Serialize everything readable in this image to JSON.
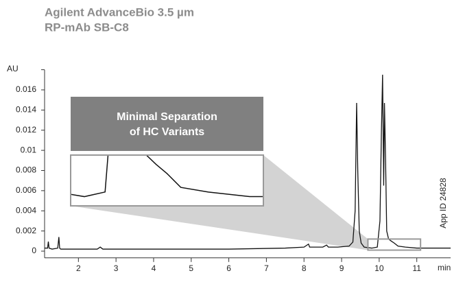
{
  "chart_data": {
    "type": "line",
    "title": [
      "Agilent AdvanceBio 3.5 µm",
      "RP-mAb SB-C8"
    ],
    "y_label": "AU",
    "x_label": "min",
    "annotation": "App ID 24828",
    "inset_title": [
      "Minimal Separation",
      "of HC Variants"
    ],
    "x": [
      1.1,
      1.18,
      1.2,
      1.22,
      1.3,
      1.45,
      1.48,
      1.5,
      1.53,
      1.7,
      2.5,
      2.58,
      2.65,
      4,
      6,
      7.5,
      8.0,
      8.12,
      8.15,
      8.2,
      8.5,
      8.6,
      8.65,
      8.9,
      9.2,
      9.3,
      9.36,
      9.4,
      9.43,
      9.47,
      9.52,
      9.6,
      9.8,
      9.95,
      10.02,
      10.06,
      10.09,
      10.12,
      10.14,
      10.17,
      10.2,
      10.25,
      10.32,
      10.4,
      10.5,
      10.7,
      11,
      11.5,
      11.9
    ],
    "values": [
      0.0003,
      0.0003,
      0.00095,
      0.0003,
      0.0002,
      0.0003,
      0.0014,
      0.0003,
      0.0002,
      0.0002,
      0.0002,
      0.0004,
      0.0002,
      0.0002,
      0.0002,
      0.0003,
      0.0004,
      0.0007,
      0.0004,
      0.0004,
      0.0004,
      0.0006,
      0.0004,
      0.0004,
      0.0005,
      0.0009,
      0.004,
      0.0147,
      0.008,
      0.002,
      0.0008,
      0.0004,
      0.0003,
      0.0004,
      0.003,
      0.012,
      0.0175,
      0.0065,
      0.0147,
      0.009,
      0.002,
      0.0012,
      0.001,
      0.0008,
      0.0005,
      0.0004,
      0.0003,
      0.0003,
      0.0003
    ],
    "color": "#111111",
    "xlim": [
      1.1,
      11.9
    ],
    "xticks": [
      2,
      3,
      4,
      5,
      6,
      7,
      8,
      9,
      10,
      11
    ],
    "ylim": [
      -0.0006,
      0.018
    ],
    "yticks": [
      0,
      0.002,
      0.004,
      0.006,
      0.008,
      0.01,
      0.012,
      0.014,
      0.016
    ],
    "zoom": {
      "xlim": [
        9.7,
        11.1
      ],
      "ylim": [
        0.0001,
        0.0012
      ]
    }
  }
}
